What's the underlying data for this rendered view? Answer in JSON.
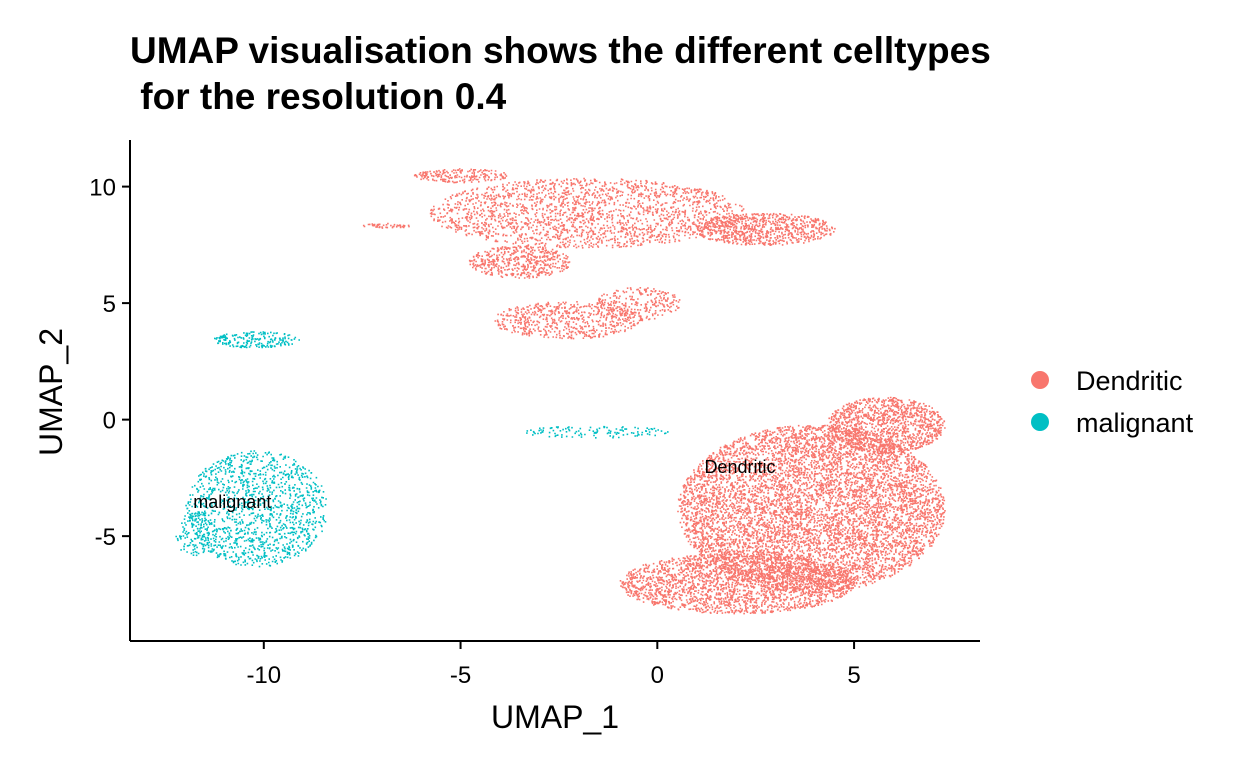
{
  "chart_data": {
    "type": "scatter",
    "title": "UMAP visualisation shows the different celltypes\n for the resolution 0.4",
    "xlabel": "UMAP_1",
    "ylabel": "UMAP_2",
    "xlim": [
      -13.4,
      8.2
    ],
    "ylim": [
      -9.5,
      12
    ],
    "xticks": [
      -10,
      -5,
      0,
      5
    ],
    "xtick_labels": [
      "-10",
      "-5",
      "0",
      "5"
    ],
    "yticks": [
      -5,
      0,
      5,
      10
    ],
    "ytick_labels": [
      "-5",
      "0",
      "5",
      "10"
    ],
    "grid": false,
    "legend_position": "right",
    "legend": [
      {
        "name": "Dendritic",
        "color": "#F8766D"
      },
      {
        "name": "malignant",
        "color": "#00BFC4"
      }
    ],
    "cluster_labels": [
      {
        "text": "Dendritic",
        "x": 2.1,
        "y": -2.3
      },
      {
        "text": "malignant",
        "x": -10.8,
        "y": -3.8
      }
    ],
    "series": [
      {
        "name": "Dendritic",
        "color": "#F8766D",
        "regions": [
          {
            "cx": 3.9,
            "cy": -3.8,
            "rx": 3.4,
            "ry": 3.6,
            "n": 7000
          },
          {
            "cx": 2.0,
            "cy": -7.0,
            "rx": 3.0,
            "ry": 1.3,
            "n": 2200
          },
          {
            "cx": 5.8,
            "cy": -0.2,
            "rx": 1.5,
            "ry": 1.2,
            "n": 1200
          },
          {
            "cx": -1.8,
            "cy": 8.9,
            "rx": 4.0,
            "ry": 1.5,
            "n": 2000
          },
          {
            "cx": 2.7,
            "cy": 8.2,
            "rx": 1.8,
            "ry": 0.7,
            "n": 800
          },
          {
            "cx": -3.5,
            "cy": 6.8,
            "rx": 1.3,
            "ry": 0.7,
            "n": 500
          },
          {
            "cx": -2.3,
            "cy": 4.3,
            "rx": 1.9,
            "ry": 0.8,
            "n": 600
          },
          {
            "cx": -0.5,
            "cy": 5.0,
            "rx": 1.1,
            "ry": 0.7,
            "n": 250
          },
          {
            "cx": -5.0,
            "cy": 10.5,
            "rx": 1.2,
            "ry": 0.3,
            "n": 200
          },
          {
            "cx": -6.9,
            "cy": 8.35,
            "rx": 0.6,
            "ry": 0.1,
            "n": 50
          }
        ]
      },
      {
        "name": "malignant",
        "color": "#00BFC4",
        "regions": [
          {
            "cx": -10.2,
            "cy": -3.8,
            "rx": 1.8,
            "ry": 2.5,
            "n": 1300
          },
          {
            "cx": -11.8,
            "cy": -4.8,
            "rx": 0.5,
            "ry": 1.0,
            "n": 120
          },
          {
            "cx": -10.2,
            "cy": 3.45,
            "rx": 1.1,
            "ry": 0.35,
            "n": 200
          },
          {
            "cx": -1.6,
            "cy": -0.5,
            "rx": 1.9,
            "ry": 0.25,
            "n": 120
          }
        ]
      }
    ]
  }
}
